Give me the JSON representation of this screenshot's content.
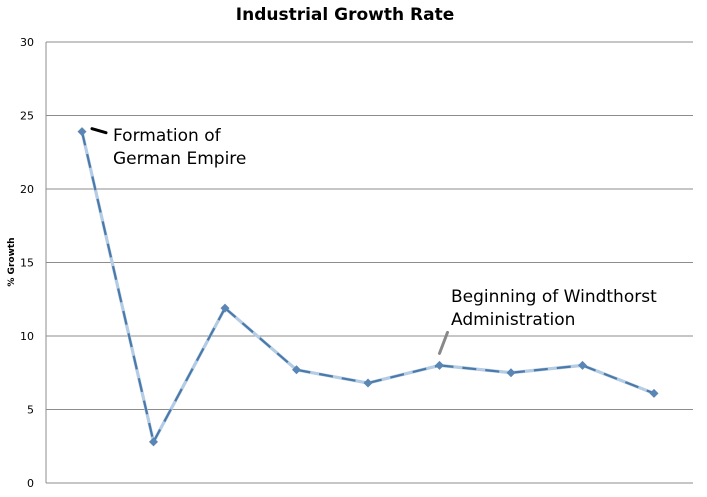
{
  "chart_data": {
    "type": "line",
    "title": "Industrial Growth Rate",
    "xlabel": "",
    "ylabel": "% Growth",
    "ylim": [
      0,
      30
    ],
    "yticks": [
      0,
      5,
      10,
      15,
      20,
      25,
      30
    ],
    "grid": true,
    "legend": "none",
    "x": [
      1,
      2,
      3,
      4,
      5,
      6,
      7,
      8,
      9
    ],
    "series": [
      {
        "values": [
          23.9,
          2.8,
          11.9,
          7.7,
          6.8,
          8.0,
          7.5,
          8.0,
          6.1
        ]
      }
    ],
    "annotations": [
      {
        "text_lines": [
          "Formation of",
          "German Empire"
        ],
        "point_index": 0
      },
      {
        "text_lines": [
          "Beginning of Windthorst",
          "Administration"
        ],
        "point_index": 5
      }
    ],
    "colors": {
      "line_dark": "#4a79aa",
      "line_light": "#b4cce4",
      "grid": "#8c8c8c",
      "marker": "#5a86b5"
    }
  }
}
